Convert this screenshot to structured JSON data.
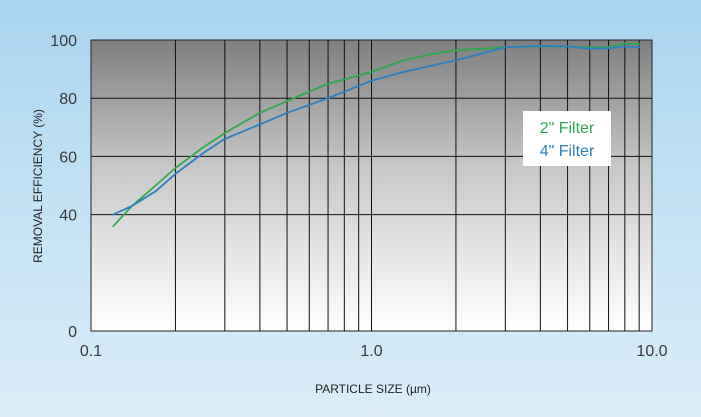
{
  "chart_data": {
    "type": "line",
    "title": "",
    "xlabel": "PARTICLE SIZE (µm)",
    "ylabel": "REMOVAL EFFICIENCY (%)",
    "x_scale": "log",
    "xlim": [
      0.1,
      10.0
    ],
    "ylim": [
      0,
      100
    ],
    "x_ticks": [
      {
        "value": 0.1,
        "label": "0.1"
      },
      {
        "value": 1.0,
        "label": "1.0"
      },
      {
        "value": 10.0,
        "label": "10.0"
      }
    ],
    "y_ticks": [
      {
        "value": 0,
        "label": "0"
      },
      {
        "value": 40,
        "label": "40"
      },
      {
        "value": 60,
        "label": "60"
      },
      {
        "value": 80,
        "label": "80"
      },
      {
        "value": 100,
        "label": "100"
      }
    ],
    "grid": true,
    "legend_position": "right",
    "series": [
      {
        "name": "2\" Filter",
        "color": "#2fa84f",
        "points": [
          [
            0.12,
            36
          ],
          [
            0.14,
            43
          ],
          [
            0.17,
            50
          ],
          [
            0.2,
            56
          ],
          [
            0.25,
            63
          ],
          [
            0.3,
            68
          ],
          [
            0.4,
            75
          ],
          [
            0.5,
            79
          ],
          [
            0.7,
            85
          ],
          [
            1.0,
            89
          ],
          [
            1.3,
            93
          ],
          [
            1.6,
            95
          ],
          [
            2.0,
            96.5
          ],
          [
            2.5,
            97
          ],
          [
            3.0,
            97.5
          ],
          [
            4.0,
            97.8
          ],
          [
            5.0,
            97.8
          ],
          [
            6.0,
            97.5
          ],
          [
            7.0,
            97.6
          ],
          [
            8.0,
            98.8
          ],
          [
            9.0,
            98.6
          ]
        ]
      },
      {
        "name": "4\" Filter",
        "color": "#2c7fc0",
        "points": [
          [
            0.12,
            40
          ],
          [
            0.14,
            43
          ],
          [
            0.17,
            48
          ],
          [
            0.2,
            54
          ],
          [
            0.25,
            61
          ],
          [
            0.3,
            66
          ],
          [
            0.4,
            71
          ],
          [
            0.5,
            75
          ],
          [
            0.7,
            80
          ],
          [
            1.0,
            86
          ],
          [
            1.3,
            89
          ],
          [
            1.6,
            91
          ],
          [
            2.0,
            93
          ],
          [
            2.5,
            95.5
          ],
          [
            3.0,
            97.5
          ],
          [
            4.0,
            98
          ],
          [
            5.0,
            97.8
          ],
          [
            6.0,
            97
          ],
          [
            7.0,
            97.2
          ],
          [
            8.0,
            97.8
          ],
          [
            9.0,
            97.5
          ]
        ]
      }
    ]
  }
}
